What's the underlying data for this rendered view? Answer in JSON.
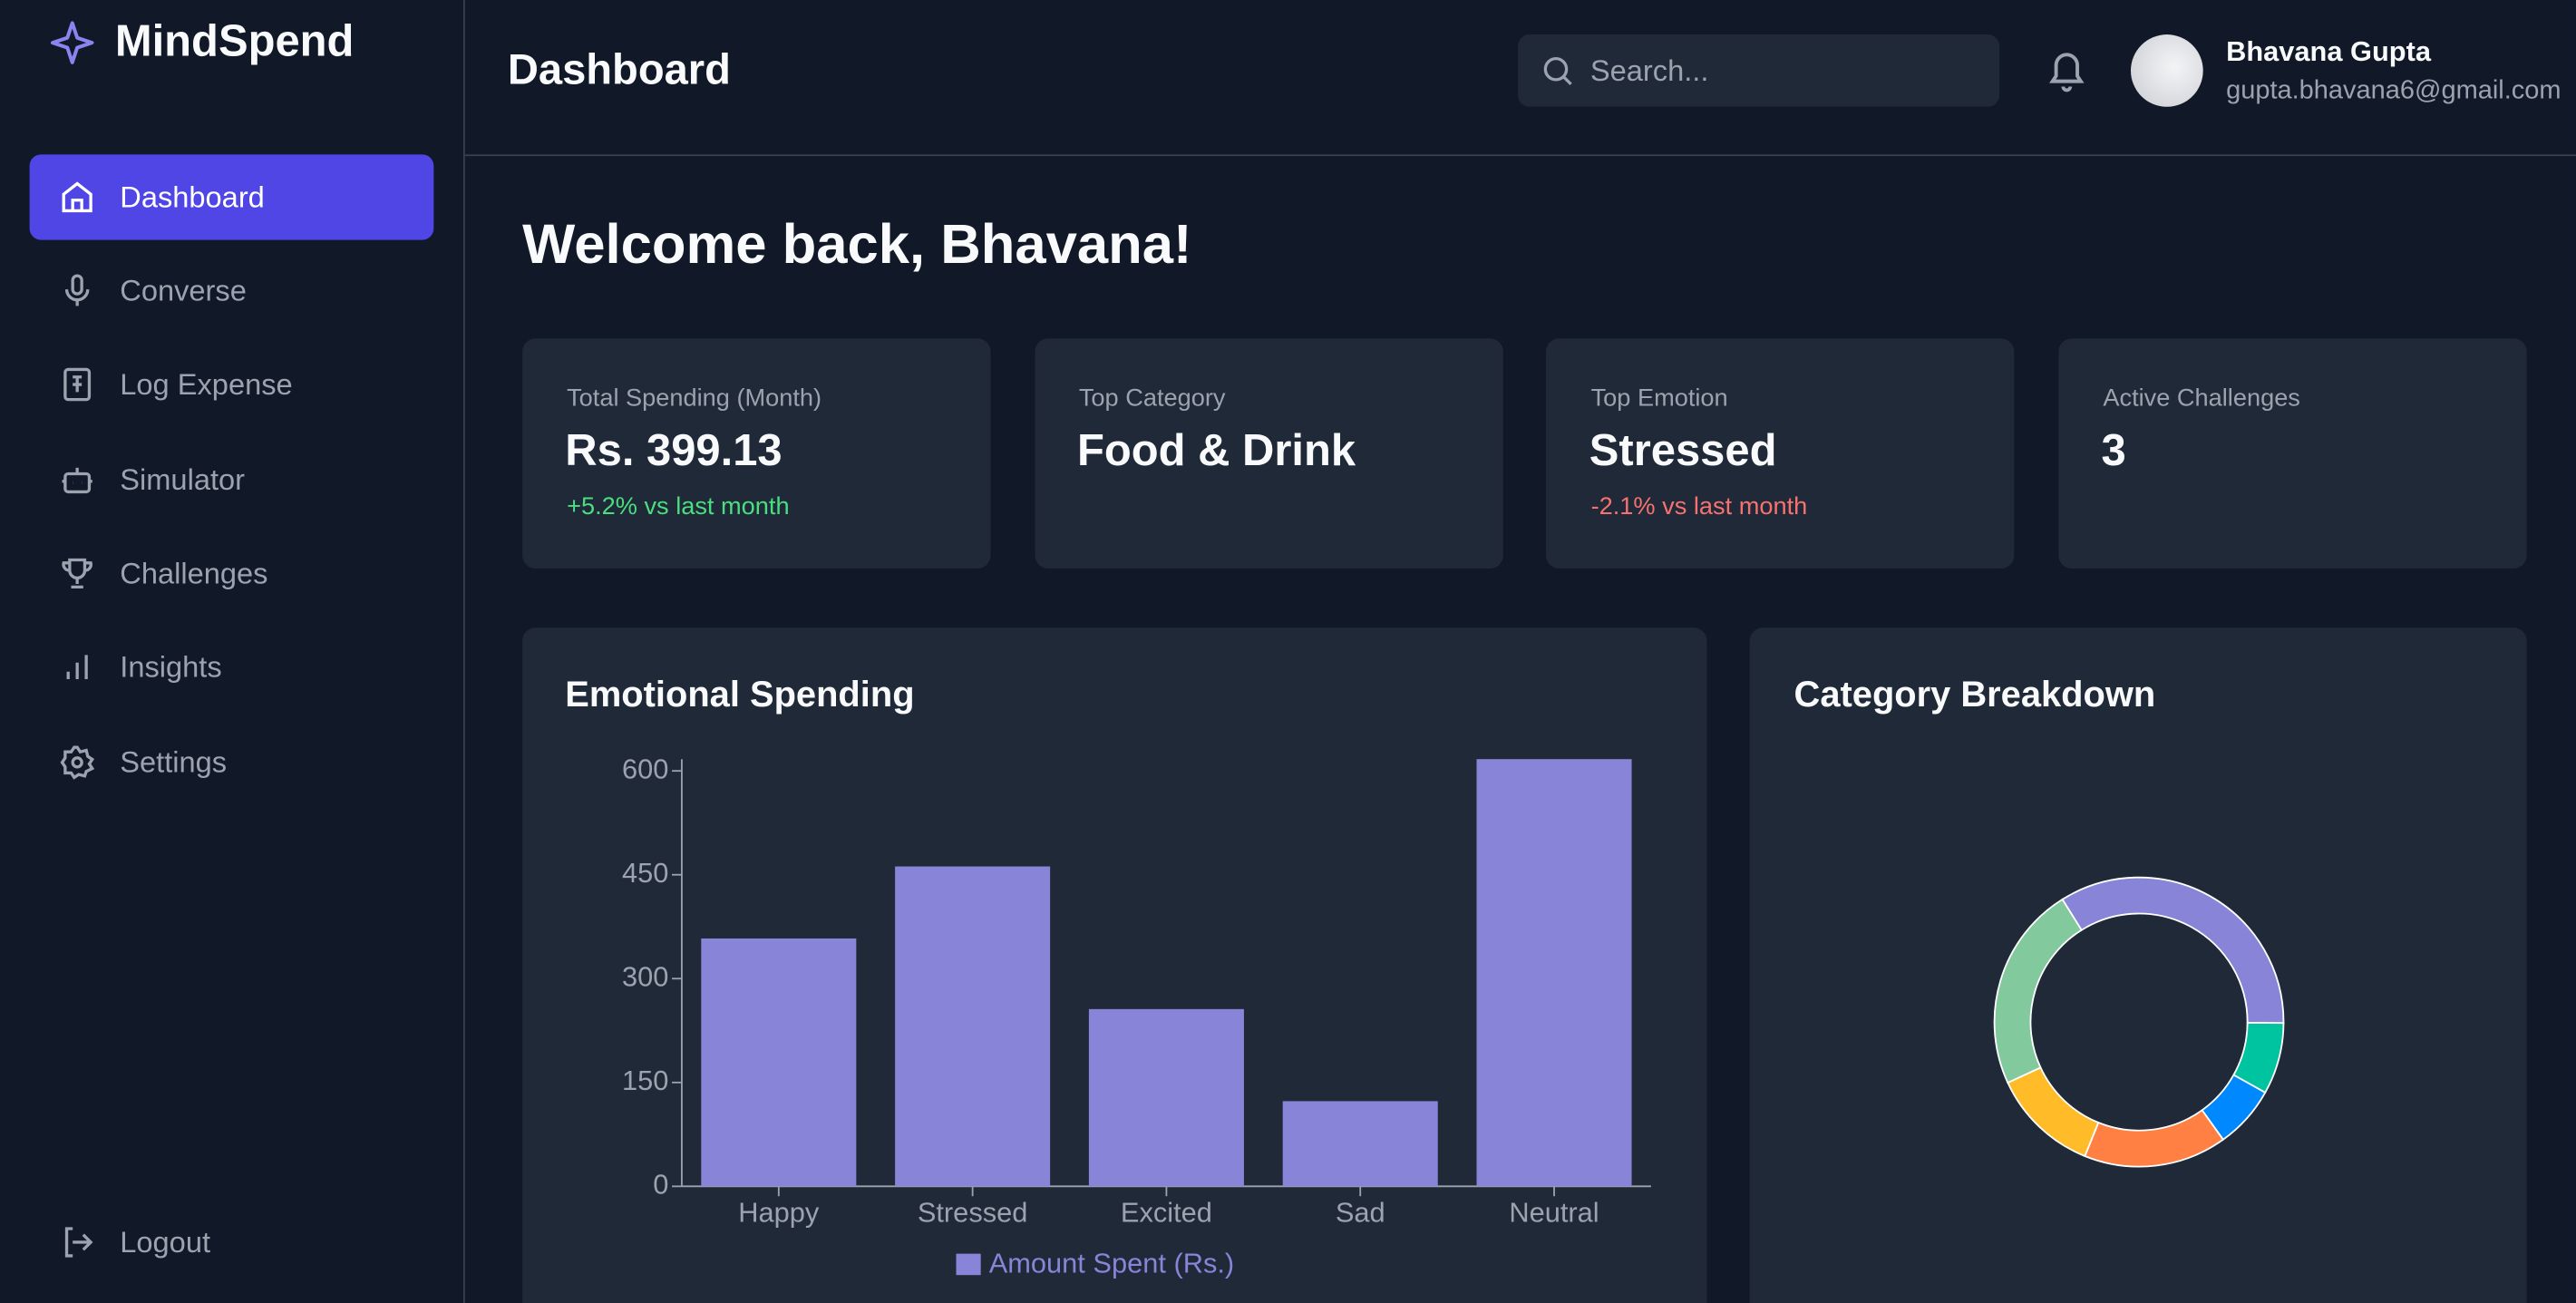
{
  "sidebar": {
    "brand": "MindSpend",
    "nav": [
      "Dashboard",
      "Converse",
      "Log Expense",
      "Simulator",
      "Challenges",
      "Insights",
      "Settings"
    ],
    "logout": "Logout"
  },
  "header": {
    "title": "Dashboard",
    "search_placeholder": "Search...",
    "user_name": "Bhavana Gupta",
    "user_email": "gupta.bhavana6@gmail.com"
  },
  "welcome": "Welcome back, Bhavana!",
  "stats": [
    {
      "label": "Total Spending (Month)",
      "value": "Rs. 399.13",
      "change": "+5.2% vs last month",
      "trend": "up"
    },
    {
      "label": "Top Category",
      "value": "Food & Drink"
    },
    {
      "label": "Top Emotion",
      "value": "Stressed",
      "change": "-2.1% vs last month",
      "trend": "down"
    },
    {
      "label": "Active Challenges",
      "value": "3"
    }
  ],
  "chart_data": [
    {
      "type": "bar",
      "title": "Emotional Spending",
      "categories": [
        "Happy",
        "Stressed",
        "Excited",
        "Sad",
        "Neutral"
      ],
      "series": [
        {
          "name": "Amount Spent (Rs.)",
          "color": "#8884d8",
          "values": [
            358,
            462,
            256,
            123,
            617
          ]
        }
      ],
      "ylim": [
        0,
        617
      ],
      "yticks": [
        0,
        150,
        300,
        450,
        600
      ],
      "grid": false,
      "legend": "bottom"
    },
    {
      "type": "pie",
      "title": "Category Breakdown",
      "donut": true,
      "values": [
        34,
        8,
        7,
        16,
        12,
        23
      ],
      "colors": [
        "#8884d8",
        "#00c49f",
        "#0088fe",
        "#ff8042",
        "#ffbb28",
        "#82ca9d"
      ]
    }
  ]
}
